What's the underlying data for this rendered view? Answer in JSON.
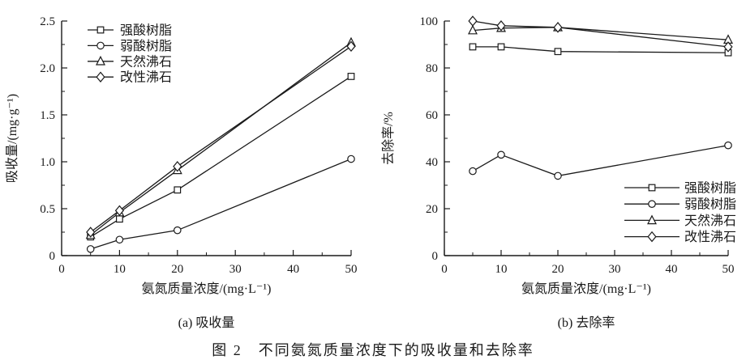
{
  "figure": {
    "caption": "图 2　不同氨氮质量浓度下的吸收量和去除率"
  },
  "colors": {
    "line": "#1a1a1a",
    "text": "#1a1a1a",
    "background": "#ffffff"
  },
  "chart_data": [
    {
      "id": "absorption",
      "type": "line",
      "panel_label": "(a) 吸收量",
      "xlabel": "氨氮质量浓度/(mg·L⁻¹)",
      "ylabel": "吸收量/(mg·g⁻¹)",
      "x": [
        5,
        10,
        20,
        50
      ],
      "xlim": [
        0,
        50
      ],
      "ylim": [
        0,
        2.5
      ],
      "xticks": [
        0,
        10,
        20,
        30,
        40,
        50
      ],
      "xtick_labels": [
        "0",
        "10",
        "20",
        "30",
        "40",
        "50"
      ],
      "x_minor_step": 5,
      "yticks": [
        0,
        0.5,
        1.0,
        1.5,
        2.0,
        2.5
      ],
      "ytick_labels": [
        "0",
        "0.5",
        "1.0",
        "1.5",
        "2.0",
        "2.5"
      ],
      "y_minor_step": 0.25,
      "grid": false,
      "legend_position": "top-left",
      "series": [
        {
          "id": "strong-acid-resin",
          "name": "强酸树脂",
          "marker": "square",
          "values": [
            0.2,
            0.39,
            0.7,
            1.91
          ]
        },
        {
          "id": "weak-acid-resin",
          "name": "弱酸树脂",
          "marker": "circle",
          "values": [
            0.07,
            0.17,
            0.27,
            1.03
          ]
        },
        {
          "id": "natural-zeolite",
          "name": "天然沸石",
          "marker": "triangle",
          "values": [
            0.22,
            0.46,
            0.91,
            2.27
          ]
        },
        {
          "id": "modified-zeolite",
          "name": "改性沸石",
          "marker": "diamond",
          "values": [
            0.25,
            0.48,
            0.95,
            2.23
          ]
        }
      ]
    },
    {
      "id": "removal-rate",
      "type": "line",
      "panel_label": "(b) 去除率",
      "xlabel": "氨氮质量浓度/(mg·L⁻¹)",
      "ylabel": "去除率/%",
      "x": [
        5,
        10,
        20,
        50
      ],
      "xlim": [
        0,
        50
      ],
      "ylim": [
        0,
        100
      ],
      "xticks": [
        0,
        10,
        20,
        30,
        40,
        50
      ],
      "xtick_labels": [
        "0",
        "10",
        "20",
        "30",
        "40",
        "50"
      ],
      "x_minor_step": 5,
      "yticks": [
        0,
        20,
        40,
        60,
        80,
        100
      ],
      "ytick_labels": [
        "0",
        "20",
        "40",
        "60",
        "80",
        "100"
      ],
      "y_minor_step": 10,
      "grid": false,
      "legend_position": "bottom-right",
      "series": [
        {
          "id": "strong-acid-resin",
          "name": "强酸树脂",
          "marker": "square",
          "values": [
            89,
            89,
            87,
            86.5
          ]
        },
        {
          "id": "weak-acid-resin",
          "name": "弱酸树脂",
          "marker": "circle",
          "values": [
            36,
            43,
            34,
            47
          ]
        },
        {
          "id": "natural-zeolite",
          "name": "天然沸石",
          "marker": "triangle",
          "values": [
            96,
            97,
            97.3,
            92
          ]
        },
        {
          "id": "modified-zeolite",
          "name": "改性沸石",
          "marker": "diamond",
          "values": [
            100,
            98,
            97.3,
            89
          ]
        }
      ]
    }
  ]
}
